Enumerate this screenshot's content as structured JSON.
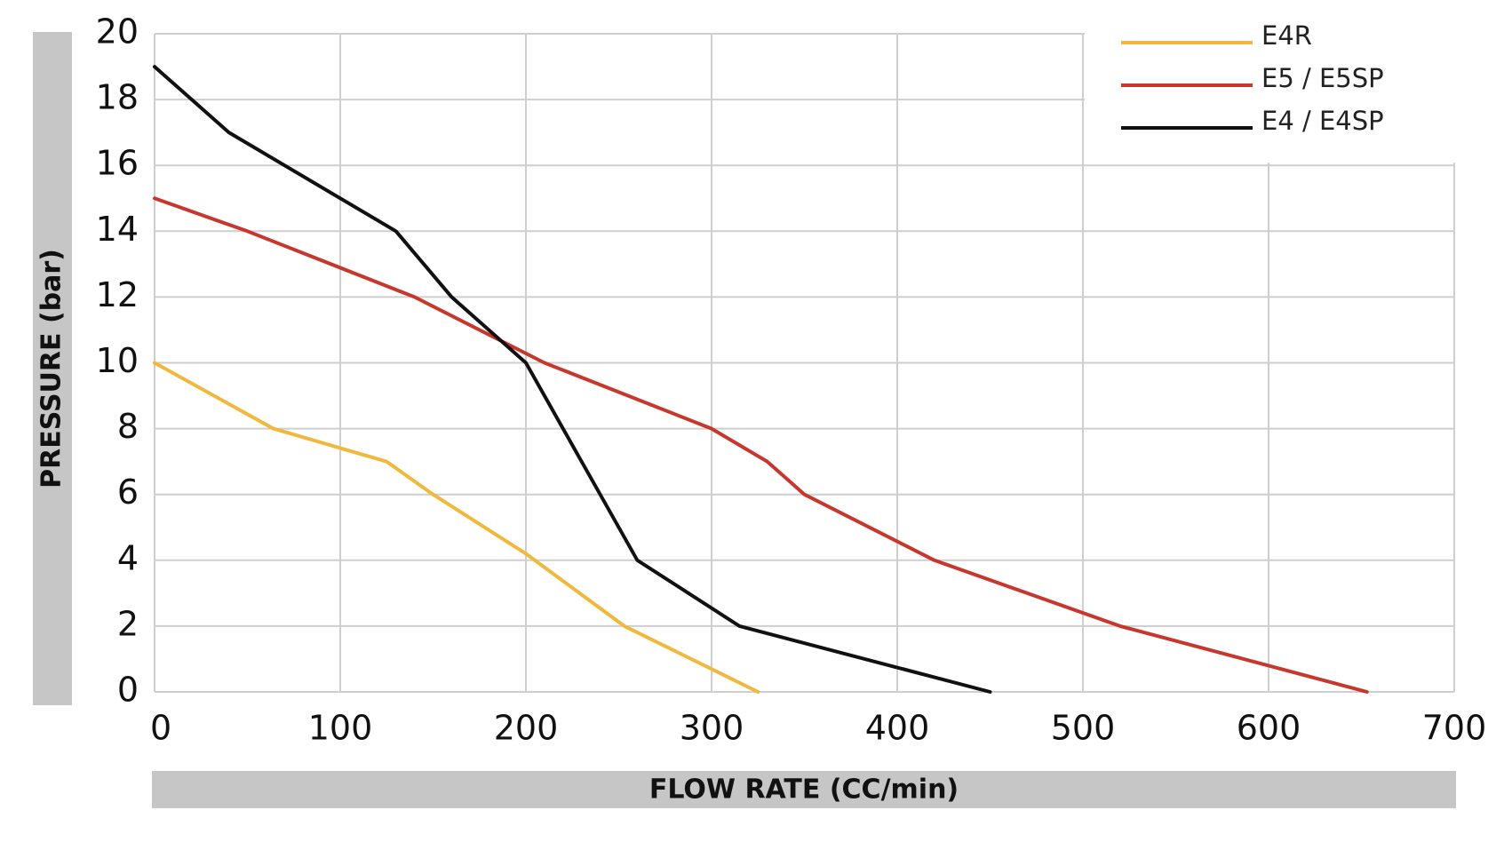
{
  "chart_data": {
    "type": "line",
    "xlabel": "FLOW RATE (CC/min)",
    "ylabel": "PRESSURE (bar)",
    "xlim": [
      0,
      700
    ],
    "ylim": [
      0,
      20
    ],
    "x_ticks": [
      "0",
      "100",
      "200",
      "300",
      "400",
      "500",
      "600",
      "700"
    ],
    "y_ticks": [
      "0",
      "2",
      "4",
      "6",
      "8",
      "10",
      "12",
      "14",
      "16",
      "18",
      "20"
    ],
    "grid": true,
    "legend_position": "top-right",
    "series": [
      {
        "name": "E4R",
        "color": "#F0B83C",
        "points": [
          [
            0,
            10
          ],
          [
            64,
            8
          ],
          [
            125,
            7
          ],
          [
            150,
            6
          ],
          [
            200,
            4.2
          ],
          [
            253,
            2
          ],
          [
            325,
            0
          ]
        ]
      },
      {
        "name": "E5 / E5SP",
        "color": "#C8372D",
        "points": [
          [
            0,
            15
          ],
          [
            50,
            14
          ],
          [
            140,
            12
          ],
          [
            210,
            10
          ],
          [
            300,
            8
          ],
          [
            330,
            7
          ],
          [
            350,
            6
          ],
          [
            420,
            4
          ],
          [
            520,
            2
          ],
          [
            653,
            0
          ]
        ]
      },
      {
        "name": "E4 / E4SP",
        "color": "#111111",
        "points": [
          [
            0,
            19
          ],
          [
            40,
            17
          ],
          [
            130,
            14
          ],
          [
            160,
            12
          ],
          [
            200,
            10
          ],
          [
            220,
            8
          ],
          [
            230,
            7
          ],
          [
            240,
            6
          ],
          [
            260,
            4
          ],
          [
            315,
            2
          ],
          [
            450,
            0
          ]
        ]
      }
    ]
  }
}
